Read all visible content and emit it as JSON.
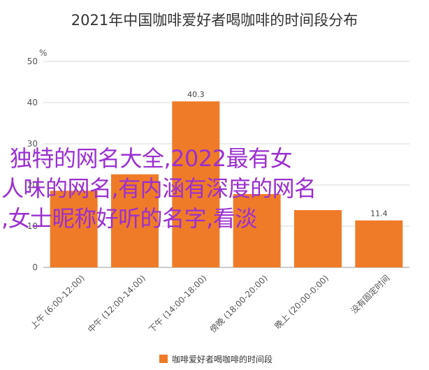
{
  "chart_data": {
    "type": "bar",
    "title": "2021年中国咖啡爱好者喝咖啡的时间段分布",
    "ylabel": "%",
    "xlabel": "",
    "ylim": [
      0,
      50
    ],
    "yticks": [
      0,
      10,
      20,
      30,
      40,
      50
    ],
    "categories": [
      "上午 (6:00-12:00)",
      "中午 (12:00-14:00)",
      "下午 (14:00-18:00)",
      "傍晚 (18:00-20:00)",
      "晚上 (20:00-0:00)",
      "没有固定时间"
    ],
    "series": [
      {
        "name": "咖啡爱好者喝咖啡的时间段",
        "values": [
          18.6,
          22.6,
          40.3,
          17.8,
          13.9,
          11.4
        ],
        "labels": [
          "",
          "",
          "40.3",
          "",
          "",
          "11.4"
        ],
        "color": "#ef7b28"
      }
    ],
    "grid": true,
    "legend": "bottom"
  },
  "overlay": {
    "line1": "独特的网名大全,2022最有女",
    "line2": "人味的网名,有内涵有深度的网名",
    "line3": ",女士昵称好听的名字,看淡",
    "color": "#9b2fd0"
  }
}
